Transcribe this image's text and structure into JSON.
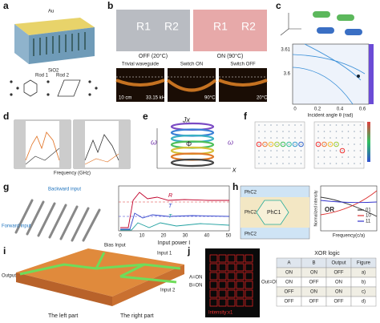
{
  "a": {
    "letter": "a",
    "top": "Au",
    "bottom": "SiO2",
    "rod1": "Rod 1",
    "rod2": "Rod 2"
  },
  "b": {
    "letter": "b",
    "r1": "R1",
    "r2": "R2",
    "off": "OFF (20°C)",
    "on": "ON (90°C)",
    "views": [
      "Trivial waveguide",
      "Switch ON",
      "Switch OFF"
    ],
    "scale": "10 cm",
    "freq": "33.15 kHz",
    "hot": "90°C",
    "cold": "20°C"
  },
  "c": {
    "letter": "c",
    "xlabel": "Incident angle θ (rad)",
    "xticks": [
      "0",
      "0.2",
      "0.4",
      "0.6"
    ],
    "yticks": [
      "3.61",
      "3.6"
    ]
  },
  "d": {
    "letter": "d",
    "xlabel": "Frequency (GHz)"
  },
  "e": {
    "letter": "e",
    "coupling": "Jx",
    "omega": "ω",
    "phi": "Φ",
    "xaxis": "x"
  },
  "f": {
    "letter": "f"
  },
  "g": {
    "letter": "g",
    "backward": "Backward input",
    "forward": "Forward input",
    "xlabel": "Input power I",
    "xticks": [
      "0",
      "10",
      "20",
      "30",
      "40",
      "50"
    ],
    "curves": [
      "R",
      "T",
      "T"
    ]
  },
  "h": {
    "letter": "h",
    "phc2": "PhC2",
    "phc1": "PhC1",
    "gate": "OR",
    "legend": [
      "01",
      "10",
      "11"
    ],
    "xlabel": "Frequency(c/a)",
    "ylabel": "Normalized intensity"
  },
  "i": {
    "letter": "i",
    "bias": "Bias Input",
    "in1": "Input 1",
    "in2": "Input 2",
    "out": "Output",
    "left": "The left part",
    "right": "The right part"
  },
  "j": {
    "letter": "j",
    "a": "A=ON",
    "b": "B=ON",
    "out": "Out=OFF",
    "intensity": "Intensity:x1",
    "title": "XOR logic",
    "table": {
      "header": [
        "A",
        "B",
        "Output",
        "Figure"
      ],
      "rows": [
        [
          "ON",
          "ON",
          "OFF",
          "a)"
        ],
        [
          "ON",
          "OFF",
          "ON",
          "b)"
        ],
        [
          "OFF",
          "ON",
          "ON",
          "c)"
        ],
        [
          "OFF",
          "OFF",
          "OFF",
          "d)"
        ]
      ]
    }
  }
}
